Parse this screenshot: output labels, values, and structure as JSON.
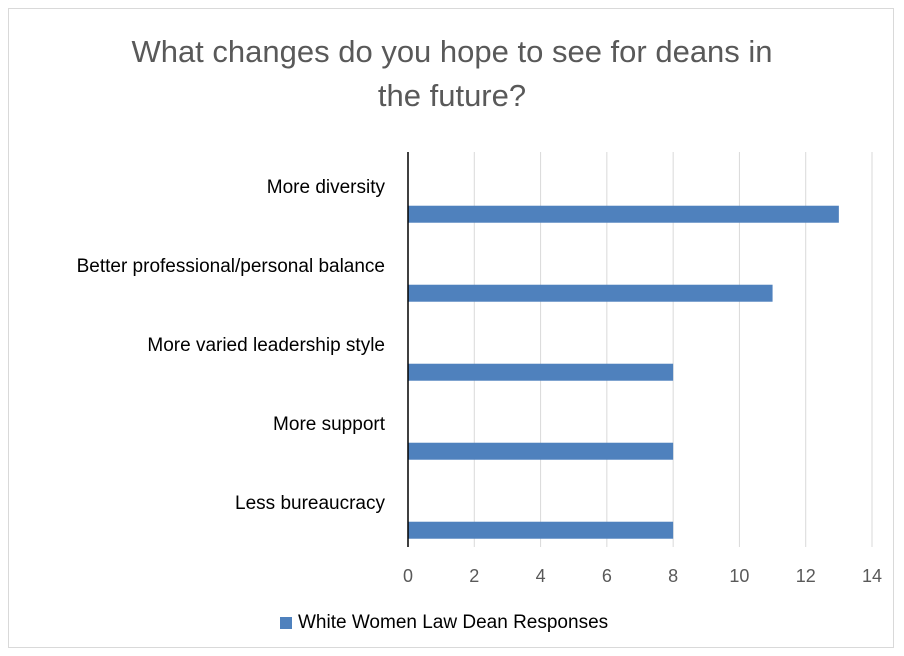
{
  "colors": {
    "bar": "#4f81bd",
    "grid": "#d9d9d9",
    "axis": "#000000"
  },
  "chart_data": {
    "type": "bar",
    "orientation": "horizontal",
    "title_lines": [
      "What changes do you hope to see for deans in",
      "the future?"
    ],
    "categories": [
      "More diversity",
      "Better professional/personal balance",
      "More varied leadership style",
      "More support",
      "Less bureaucracy"
    ],
    "series": [
      {
        "name": "White Women Law Dean Responses",
        "values": [
          13,
          11,
          8,
          8,
          8
        ]
      }
    ],
    "xlim": [
      0,
      14
    ],
    "xticks": [
      "0",
      "2",
      "4",
      "6",
      "8",
      "10",
      "12",
      "14"
    ],
    "grid": true,
    "legend_position": "bottom"
  }
}
